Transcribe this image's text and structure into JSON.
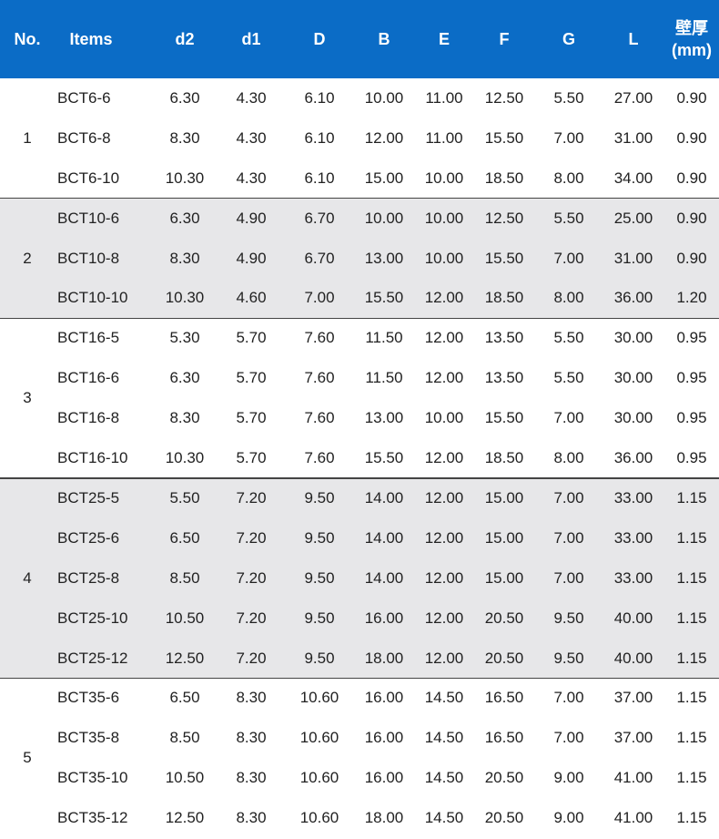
{
  "table": {
    "header": [
      "No.",
      "Items",
      "d2",
      "d1",
      "D",
      "B",
      "E",
      "F",
      "G",
      "L",
      [
        "壁厚",
        "(mm)"
      ]
    ],
    "groups": [
      {
        "no": "1",
        "rows": [
          [
            "BCT6-6",
            "6.30",
            "4.30",
            "6.10",
            "10.00",
            "11.00",
            "12.50",
            "5.50",
            "27.00",
            "0.90"
          ],
          [
            "BCT6-8",
            "8.30",
            "4.30",
            "6.10",
            "12.00",
            "11.00",
            "15.50",
            "7.00",
            "31.00",
            "0.90"
          ],
          [
            "BCT6-10",
            "10.30",
            "4.30",
            "6.10",
            "15.00",
            "10.00",
            "18.50",
            "8.00",
            "34.00",
            "0.90"
          ]
        ]
      },
      {
        "no": "2",
        "rows": [
          [
            "BCT10-6",
            "6.30",
            "4.90",
            "6.70",
            "10.00",
            "10.00",
            "12.50",
            "5.50",
            "25.00",
            "0.90"
          ],
          [
            "BCT10-8",
            "8.30",
            "4.90",
            "6.70",
            "13.00",
            "10.00",
            "15.50",
            "7.00",
            "31.00",
            "0.90"
          ],
          [
            "BCT10-10",
            "10.30",
            "4.60",
            "7.00",
            "15.50",
            "12.00",
            "18.50",
            "8.00",
            "36.00",
            "1.20"
          ]
        ]
      },
      {
        "no": "3",
        "rows": [
          [
            "BCT16-5",
            "5.30",
            "5.70",
            "7.60",
            "11.50",
            "12.00",
            "13.50",
            "5.50",
            "30.00",
            "0.95"
          ],
          [
            "BCT16-6",
            "6.30",
            "5.70",
            "7.60",
            "11.50",
            "12.00",
            "13.50",
            "5.50",
            "30.00",
            "0.95"
          ],
          [
            "BCT16-8",
            "8.30",
            "5.70",
            "7.60",
            "13.00",
            "10.00",
            "15.50",
            "7.00",
            "30.00",
            "0.95"
          ],
          [
            "BCT16-10",
            "10.30",
            "5.70",
            "7.60",
            "15.50",
            "12.00",
            "18.50",
            "8.00",
            "36.00",
            "0.95"
          ]
        ]
      },
      {
        "no": "4",
        "rows": [
          [
            "BCT25-5",
            "5.50",
            "7.20",
            "9.50",
            "14.00",
            "12.00",
            "15.00",
            "7.00",
            "33.00",
            "1.15"
          ],
          [
            "BCT25-6",
            "6.50",
            "7.20",
            "9.50",
            "14.00",
            "12.00",
            "15.00",
            "7.00",
            "33.00",
            "1.15"
          ],
          [
            "BCT25-8",
            "8.50",
            "7.20",
            "9.50",
            "14.00",
            "12.00",
            "15.00",
            "7.00",
            "33.00",
            "1.15"
          ],
          [
            "BCT25-10",
            "10.50",
            "7.20",
            "9.50",
            "16.00",
            "12.00",
            "20.50",
            "9.50",
            "40.00",
            "1.15"
          ],
          [
            "BCT25-12",
            "12.50",
            "7.20",
            "9.50",
            "18.00",
            "12.00",
            "20.50",
            "9.50",
            "40.00",
            "1.15"
          ]
        ]
      },
      {
        "no": "5",
        "rows": [
          [
            "BCT35-6",
            "6.50",
            "8.30",
            "10.60",
            "16.00",
            "14.50",
            "16.50",
            "7.00",
            "37.00",
            "1.15"
          ],
          [
            "BCT35-8",
            "8.50",
            "8.30",
            "10.60",
            "16.00",
            "14.50",
            "16.50",
            "7.00",
            "37.00",
            "1.15"
          ],
          [
            "BCT35-10",
            "10.50",
            "8.30",
            "10.60",
            "16.00",
            "14.50",
            "20.50",
            "9.00",
            "41.00",
            "1.15"
          ],
          [
            "BCT35-12",
            "12.50",
            "8.30",
            "10.60",
            "18.00",
            "14.50",
            "20.50",
            "9.00",
            "41.00",
            "1.15"
          ]
        ]
      }
    ]
  }
}
